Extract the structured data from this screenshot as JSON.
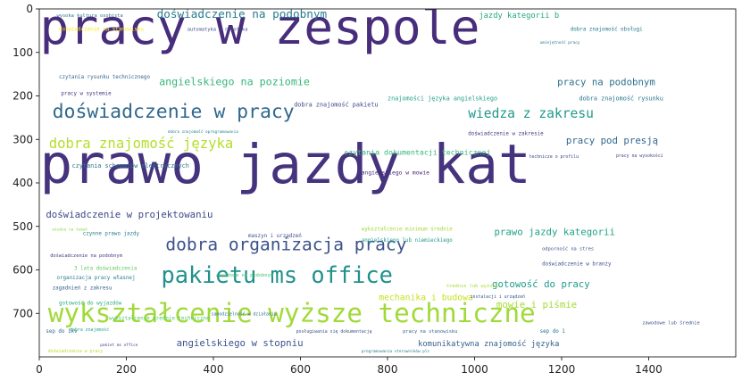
{
  "chart_data": {
    "type": "wordcloud",
    "title": "",
    "xlabel": "",
    "ylabel": "",
    "xlim": [
      0,
      1600
    ],
    "ylim": [
      800,
      0
    ],
    "grid": false,
    "legend": "none",
    "x_ticks": [
      "0",
      "200",
      "400",
      "600",
      "800",
      "1000",
      "1200",
      "1400"
    ],
    "y_ticks": [
      "0",
      "100",
      "200",
      "300",
      "400",
      "500",
      "600",
      "700"
    ],
    "x_tick_values": [
      0,
      200,
      400,
      600,
      800,
      1000,
      1200,
      1400
    ],
    "y_tick_values": [
      0,
      100,
      200,
      300,
      400,
      500,
      600,
      700
    ],
    "words": [
      {
        "text": "pracy w zespole",
        "x": 1,
        "y": 80,
        "size": 112,
        "color": "#472d7b"
      },
      {
        "text": "prawo jazdy kat",
        "x": 1,
        "y": 400,
        "size": 125,
        "color": "#46337e"
      },
      {
        "text": "wykształcenie wyższe techniczne",
        "x": 20,
        "y": 720,
        "size": 60,
        "color": "#a0da39"
      },
      {
        "text": "doświadczenie w pracy",
        "x": 30,
        "y": 250,
        "size": 44,
        "color": "#31688e"
      },
      {
        "text": "pakietu ms office",
        "x": 280,
        "y": 630,
        "size": 52,
        "color": "#21918c"
      },
      {
        "text": "dobra organizacja pracy",
        "x": 290,
        "y": 555,
        "size": 40,
        "color": "#3b528b"
      },
      {
        "text": "doświadczenie na podobnym",
        "x": 270,
        "y": 20,
        "size": 26,
        "color": "#287c8e"
      },
      {
        "text": "dobra znajomość języka",
        "x": 22,
        "y": 320,
        "size": 32,
        "color": "#b5de2b"
      },
      {
        "text": "wiedza z zakresu",
        "x": 985,
        "y": 250,
        "size": 30,
        "color": "#1f9a8a"
      },
      {
        "text": "angielskiego na poziomie",
        "x": 275,
        "y": 175,
        "size": 24,
        "color": "#35b779"
      },
      {
        "text": "pracy na podobnym",
        "x": 1190,
        "y": 175,
        "size": 22,
        "color": "#2d708e"
      },
      {
        "text": "pracy pod presją",
        "x": 1210,
        "y": 310,
        "size": 22,
        "color": "#31688e"
      },
      {
        "text": "doświadczenie w projektowaniu",
        "x": 15,
        "y": 480,
        "size": 22,
        "color": "#3e4989"
      },
      {
        "text": "prawo jazdy kategorii",
        "x": 1045,
        "y": 520,
        "size": 22,
        "color": "#1fa187"
      },
      {
        "text": "gotowość do pracy",
        "x": 1040,
        "y": 640,
        "size": 22,
        "color": "#1e9b8a"
      },
      {
        "text": "mowie i piśmie",
        "x": 1050,
        "y": 687,
        "size": 22,
        "color": "#a5db36"
      },
      {
        "text": "mechanika i budowa",
        "x": 780,
        "y": 670,
        "size": 20,
        "color": "#c8e020"
      },
      {
        "text": "angielskiego w stopniu",
        "x": 315,
        "y": 775,
        "size": 22,
        "color": "#39568c"
      },
      {
        "text": "komunikatywna znajomość języka",
        "x": 870,
        "y": 775,
        "size": 18,
        "color": "#355f8d"
      },
      {
        "text": "jazdy kategorii b",
        "x": 1010,
        "y": 20,
        "size": 18,
        "color": "#22a884"
      },
      {
        "text": "czytania dokumentacji technicznej",
        "x": 700,
        "y": 335,
        "size": 17,
        "color": "#35b779"
      },
      {
        "text": "czytania schematów elektrycznych",
        "x": 75,
        "y": 365,
        "size": 14,
        "color": "#2c728e"
      },
      {
        "text": "dobra znajomość pakietu",
        "x": 585,
        "y": 225,
        "size": 14,
        "color": "#3e4989"
      },
      {
        "text": "znajomości języka angielskiego",
        "x": 800,
        "y": 210,
        "size": 14,
        "color": "#1f9f88"
      },
      {
        "text": "dobra znajomość rysunku",
        "x": 1240,
        "y": 210,
        "size": 14,
        "color": "#2a788e"
      },
      {
        "text": "dobra znajomość obsługi",
        "x": 1220,
        "y": 50,
        "size": 12,
        "color": "#2a788e"
      },
      {
        "text": "wysoka kultura osobista",
        "x": 40,
        "y": 18,
        "size": 11,
        "color": "#2c728e"
      },
      {
        "text": "doświadczenie na stanowisku",
        "x": 45,
        "y": 50,
        "size": 12,
        "color": "#fde725"
      },
      {
        "text": "automatyka i robotyka",
        "x": 340,
        "y": 50,
        "size": 11,
        "color": "#3e4989"
      },
      {
        "text": "czytania rysunku technicznego",
        "x": 45,
        "y": 160,
        "size": 12,
        "color": "#31688e"
      },
      {
        "text": "pracy w systemie",
        "x": 50,
        "y": 198,
        "size": 12,
        "color": "#443983"
      },
      {
        "text": "angielskiego w mowie",
        "x": 740,
        "y": 380,
        "size": 13,
        "color": "#482878"
      },
      {
        "text": "doświadczenie w zakresie",
        "x": 985,
        "y": 290,
        "size": 12,
        "color": "#424086"
      },
      {
        "text": "wykształcenie minimum średnie",
        "x": 740,
        "y": 510,
        "size": 12,
        "color": "#a2da37"
      },
      {
        "text": "angielskiego lub niemieckiego",
        "x": 740,
        "y": 535,
        "size": 12,
        "color": "#1f9a8a"
      },
      {
        "text": "czynne prawo jazdy",
        "x": 100,
        "y": 520,
        "size": 12,
        "color": "#26828e"
      },
      {
        "text": "maszyn i urządzeń",
        "x": 480,
        "y": 525,
        "size": 12,
        "color": "#3b528b"
      },
      {
        "text": "doświadczenie na podobnym",
        "x": 25,
        "y": 570,
        "size": 11,
        "color": "#443983"
      },
      {
        "text": "3 lata doświadczenia",
        "x": 80,
        "y": 600,
        "size": 12,
        "color": "#5ec962"
      },
      {
        "text": "organizacja pracy własnej",
        "x": 40,
        "y": 622,
        "size": 12,
        "color": "#287d8e"
      },
      {
        "text": "zagadnień z zakresu",
        "x": 30,
        "y": 645,
        "size": 12,
        "color": "#355f8d"
      },
      {
        "text": "gotowość do wyjazdów",
        "x": 45,
        "y": 680,
        "size": 12,
        "color": "#27ad81"
      },
      {
        "text": "wykształcenie średnie techniczne",
        "x": 160,
        "y": 715,
        "size": 12,
        "color": "#56c667"
      },
      {
        "text": "zawodowe na podobnym",
        "x": 405,
        "y": 615,
        "size": 11,
        "color": "#46c06f"
      },
      {
        "text": "odporność na stres",
        "x": 1155,
        "y": 555,
        "size": 11,
        "color": "#3b528b"
      },
      {
        "text": "doświadczenie w branży",
        "x": 1155,
        "y": 590,
        "size": 12,
        "color": "#3b528b"
      },
      {
        "text": "średnie lub wyższe",
        "x": 935,
        "y": 640,
        "size": 11,
        "color": "#a8db34"
      },
      {
        "text": "samodzielność w działaniu",
        "x": 395,
        "y": 705,
        "size": 10,
        "color": "#2d708e"
      },
      {
        "text": "pracy na stanowisku",
        "x": 835,
        "y": 745,
        "size": 11,
        "color": "#31688e"
      },
      {
        "text": "posługiwania się dokumentacją",
        "x": 590,
        "y": 745,
        "size": 10,
        "color": "#3b528b"
      },
      {
        "text": "zawodowe lub średnie",
        "x": 1385,
        "y": 725,
        "size": 11,
        "color": "#39568c"
      },
      {
        "text": "sep do 1kv",
        "x": 15,
        "y": 745,
        "size": 12,
        "color": "#2e6e8e"
      },
      {
        "text": "dobra znajomość",
        "x": 70,
        "y": 740,
        "size": 10,
        "color": "#20a386"
      },
      {
        "text": "programowania sterowników plc",
        "x": 740,
        "y": 790,
        "size": 9,
        "color": "#287c8e"
      },
      {
        "text": "doświadczenia w pracy",
        "x": 20,
        "y": 790,
        "size": 10,
        "color": "#b8de29"
      },
      {
        "text": "pakiet ms office",
        "x": 140,
        "y": 775,
        "size": 9,
        "color": "#414487"
      },
      {
        "text": "umiejętność pracy",
        "x": 1150,
        "y": 80,
        "size": 9,
        "color": "#2a788e"
      },
      {
        "text": "wiedza na temat",
        "x": 30,
        "y": 510,
        "size": 9,
        "color": "#90d743"
      },
      {
        "text": "technicze o profilu",
        "x": 1125,
        "y": 343,
        "size": 10,
        "color": "#3f4788"
      },
      {
        "text": "pracy na wysokości",
        "x": 1325,
        "y": 340,
        "size": 10,
        "color": "#433e85"
      },
      {
        "text": "dobra znajomość oprogramowania",
        "x": 295,
        "y": 285,
        "size": 9,
        "color": "#25858e"
      },
      {
        "text": "instalacji i urządzeń",
        "x": 990,
        "y": 665,
        "size": 10,
        "color": "#375a8c"
      },
      {
        "text": "sep do 1",
        "x": 1150,
        "y": 745,
        "size": 12,
        "color": "#2c738e"
      }
    ]
  }
}
